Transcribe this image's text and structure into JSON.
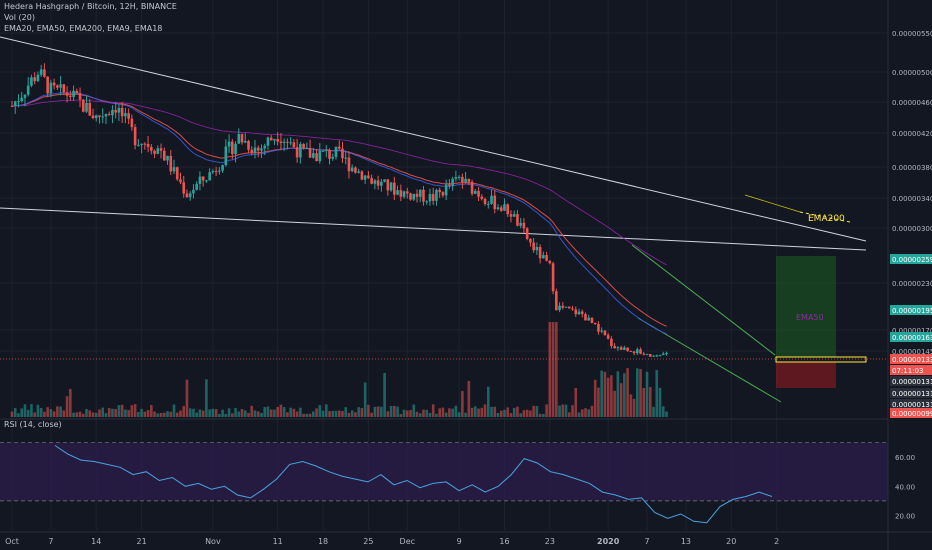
{
  "header": {
    "title": "Hedera Hashgraph / Bitcoin, 12H, BINANCE",
    "volume_label": "Vol (20)",
    "ema_label": "EMA20, EMA50, EMA200, EMA9, EMA18"
  },
  "rsi_label": "RSI (14, close)",
  "colors": {
    "background": "#131722",
    "up": "#26a69a",
    "down": "#ef5350",
    "ema_fast": "#ef5350",
    "ema_mid": "#3a5bd9",
    "ema50": "#9c27b0",
    "ema200": "#ffeb3b",
    "rsi_line": "#4aa3df",
    "rsi_band": "#2a1d4a"
  },
  "chart_data": [
    {
      "type": "candlestick",
      "title": "Hedera Hashgraph / Bitcoin, 12H, BINANCE",
      "y_axis_ticks": [
        "0.00000550",
        "0.00000500",
        "0.00000460",
        "0.00000420",
        "0.00000380",
        "0.00000340",
        "0.00000300",
        "0.00000230",
        "0.00000170",
        "0.00000145"
      ],
      "x_axis_ticks": [
        "Oct",
        "7",
        "14",
        "21",
        "Nov",
        "11",
        "18",
        "25",
        "Dec",
        "9",
        "16",
        "23",
        "2020",
        "7",
        "13",
        "20",
        "2"
      ],
      "price_path": [
        [
          "Oct 1",
          4.55e-06
        ],
        [
          "Oct 5",
          5e-06
        ],
        [
          "Oct 7",
          4.75e-06
        ],
        [
          "Oct 10",
          4.7e-06
        ],
        [
          "Oct 14",
          4.4e-06
        ],
        [
          "Oct 17",
          4.55e-06
        ],
        [
          "Oct 20",
          4.15e-06
        ],
        [
          "Oct 24",
          4e-06
        ],
        [
          "Oct 28",
          3.45e-06
        ],
        [
          "Nov 1",
          3.75e-06
        ],
        [
          "Nov 5",
          4.15e-06
        ],
        [
          "Nov 8",
          4e-06
        ],
        [
          "Nov 11",
          4.2e-06
        ],
        [
          "Nov 15",
          3.95e-06
        ],
        [
          "Nov 20",
          3.95e-06
        ],
        [
          "Nov 26",
          3.6e-06
        ],
        [
          "Dec 1",
          3.45e-06
        ],
        [
          "Dec 5",
          3.4e-06
        ],
        [
          "Dec 9",
          3.65e-06
        ],
        [
          "Dec 13",
          3.4e-06
        ],
        [
          "Dec 17",
          3.2e-06
        ],
        [
          "Dec 20",
          2.8e-06
        ],
        [
          "Dec 23",
          2.5e-06
        ],
        [
          "Dec 24",
          2e-06
        ],
        [
          "Dec 28",
          1.9e-06
        ],
        [
          "Jan 2",
          1.5e-06
        ],
        [
          "Jan 5",
          1.45e-06
        ],
        [
          "Jan 8",
          1.38e-06
        ],
        [
          "Jan 10",
          1.4e-06
        ]
      ],
      "labels": {
        "ema200": "EMA200",
        "ema50": "EMA50"
      },
      "price_tags": [
        {
          "text": "0.00000259",
          "color": "#26a69a"
        },
        {
          "text": "0.00000195",
          "color": "#26a69a"
        },
        {
          "text": "0.00000163",
          "color": "#26a69a"
        },
        {
          "text": "0.00000133",
          "color": "#ef5350"
        },
        {
          "text": "07:11:03",
          "color": "#ef5350"
        },
        {
          "text": "0.00000131",
          "color": "#2a2e39"
        },
        {
          "text": "0.00000131",
          "color": "#2a2e39"
        },
        {
          "text": "0.00000131",
          "color": "#2a2e39"
        },
        {
          "text": "0.00000099",
          "color": "#ef5350"
        }
      ]
    },
    {
      "type": "line",
      "title": "RSI (14, close)",
      "y_axis_ticks": [
        "60.00",
        "40.00",
        "20.00"
      ],
      "ylim": [
        10,
        80
      ],
      "band": [
        30,
        70
      ],
      "values": [
        68,
        62,
        58,
        57,
        55,
        53,
        48,
        50,
        44,
        46,
        40,
        42,
        38,
        40,
        34,
        32,
        38,
        45,
        55,
        57,
        54,
        50,
        47,
        45,
        43,
        48,
        41,
        44,
        39,
        42,
        43,
        37,
        41,
        36,
        40,
        48,
        59,
        56,
        50,
        48,
        45,
        42,
        36,
        34,
        31,
        32,
        22,
        18,
        21,
        16,
        15,
        26,
        31,
        33,
        36,
        33
      ]
    }
  ]
}
